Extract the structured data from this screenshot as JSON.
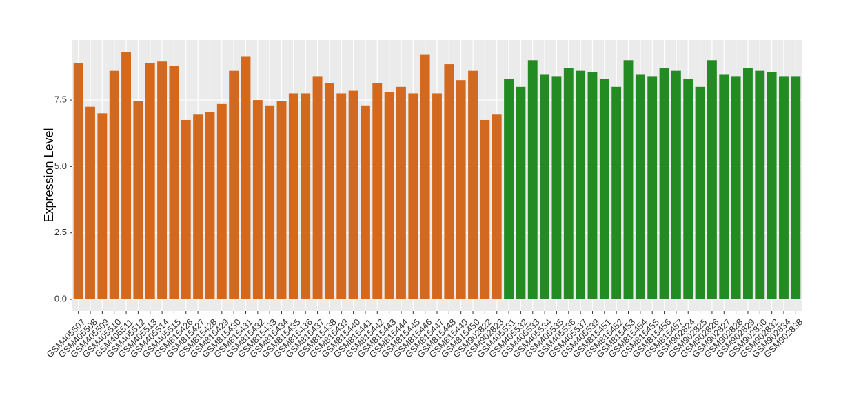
{
  "chart_data": {
    "type": "bar",
    "y_label": "Expression Level",
    "categories": [
      "GSM405507",
      "GSM405508",
      "GSM405509",
      "GSM405510",
      "GSM405511",
      "GSM405512",
      "GSM405513",
      "GSM405514",
      "GSM405515",
      "GSM815426",
      "GSM815427",
      "GSM815428",
      "GSM815429",
      "GSM815430",
      "GSM815431",
      "GSM815432",
      "GSM815433",
      "GSM815434",
      "GSM815435",
      "GSM815436",
      "GSM815437",
      "GSM815438",
      "GSM815439",
      "GSM815440",
      "GSM815441",
      "GSM815442",
      "GSM815443",
      "GSM815444",
      "GSM815445",
      "GSM815446",
      "GSM815447",
      "GSM815448",
      "GSM815449",
      "GSM815450",
      "GSM902822",
      "GSM902823",
      "GSM405531",
      "GSM405532",
      "GSM405533",
      "GSM405534",
      "GSM405535",
      "GSM405536",
      "GSM405537",
      "GSM405539",
      "GSM815451",
      "GSM815452",
      "GSM815453",
      "GSM815454",
      "GSM815455",
      "GSM815456",
      "GSM815457",
      "GSM902824",
      "GSM902825",
      "GSM902826",
      "GSM902827",
      "GSM902828",
      "GSM902829",
      "GSM902830",
      "GSM902832",
      "GSM902834",
      "GSM902838"
    ],
    "values": [
      8.9,
      7.25,
      7.0,
      8.6,
      9.3,
      7.45,
      8.9,
      8.95,
      8.8,
      6.75,
      6.95,
      7.05,
      7.35,
      8.6,
      9.15,
      7.5,
      7.3,
      7.45,
      7.75,
      7.75,
      8.4,
      8.15,
      7.75,
      7.85,
      7.3,
      8.15,
      7.8,
      8.0,
      7.75,
      9.2,
      7.75,
      8.85,
      8.25,
      8.6,
      6.75,
      6.95,
      8.3,
      8.0,
      9.0,
      8.45,
      8.4,
      8.7,
      8.6,
      8.55,
      8.3,
      8.0,
      9.0,
      8.45,
      8.4,
      8.7,
      8.6,
      8.3,
      8.0,
      9.0,
      8.45,
      8.4,
      8.7,
      8.6,
      8.55,
      8.4,
      8.4
    ],
    "colors": [
      "#d2691e",
      "#d2691e",
      "#d2691e",
      "#d2691e",
      "#d2691e",
      "#d2691e",
      "#d2691e",
      "#d2691e",
      "#d2691e",
      "#d2691e",
      "#d2691e",
      "#d2691e",
      "#d2691e",
      "#d2691e",
      "#d2691e",
      "#d2691e",
      "#d2691e",
      "#d2691e",
      "#d2691e",
      "#d2691e",
      "#d2691e",
      "#d2691e",
      "#d2691e",
      "#d2691e",
      "#d2691e",
      "#d2691e",
      "#d2691e",
      "#d2691e",
      "#d2691e",
      "#d2691e",
      "#d2691e",
      "#d2691e",
      "#d2691e",
      "#d2691e",
      "#d2691e",
      "#d2691e",
      "#228b22",
      "#228b22",
      "#228b22",
      "#228b22",
      "#228b22",
      "#228b22",
      "#228b22",
      "#228b22",
      "#228b22",
      "#228b22",
      "#228b22",
      "#228b22",
      "#228b22",
      "#228b22",
      "#228b22",
      "#228b22",
      "#228b22",
      "#228b22",
      "#228b22",
      "#228b22",
      "#228b22",
      "#228b22",
      "#228b22",
      "#228b22",
      "#228b22"
    ],
    "ylim": [
      -0.44,
      9.76
    ],
    "yticks": [
      {
        "value": 0,
        "label": "0.0"
      },
      {
        "value": 2.5,
        "label": "2.5"
      },
      {
        "value": 5,
        "label": "5.0"
      },
      {
        "value": 7.5,
        "label": "7.5"
      }
    ],
    "grid": true
  }
}
